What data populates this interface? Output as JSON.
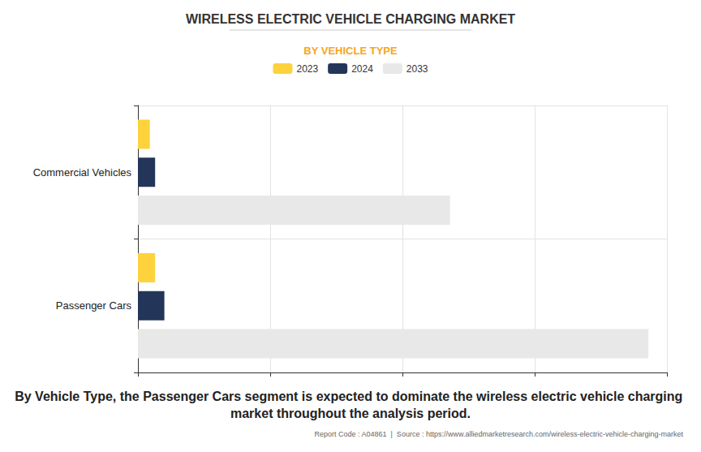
{
  "chart_data": {
    "type": "bar",
    "title": "WIRELESS ELECTRIC VEHICLE CHARGING MARKET",
    "subtitle": "BY VEHICLE TYPE",
    "orientation": "horizontal",
    "categories": [
      "Commercial Vehicles",
      "Passenger Cars"
    ],
    "series": [
      {
        "name": "2023",
        "color": "#fdd23c",
        "values": [
          0.09,
          0.13
        ]
      },
      {
        "name": "2024",
        "color": "#233659",
        "values": [
          0.13,
          0.2
        ]
      },
      {
        "name": "2033",
        "color": "#e8e8e8",
        "values": [
          2.36,
          3.86
        ]
      }
    ],
    "xlim": [
      0,
      4
    ],
    "xticks": [
      0,
      1,
      2,
      3,
      4
    ],
    "grid": true,
    "legend": "top",
    "tick_labels": "y",
    "annotations": [
      "By Vehicle Type, the Passenger Cars segment is expected to dominate the wireless electric vehicle charging market throughout the analysis period.",
      "Report Code : A04861  |  Source : https://www.alliedmarketresearch.com/wireless-electric-vehicle-charging-market"
    ]
  }
}
